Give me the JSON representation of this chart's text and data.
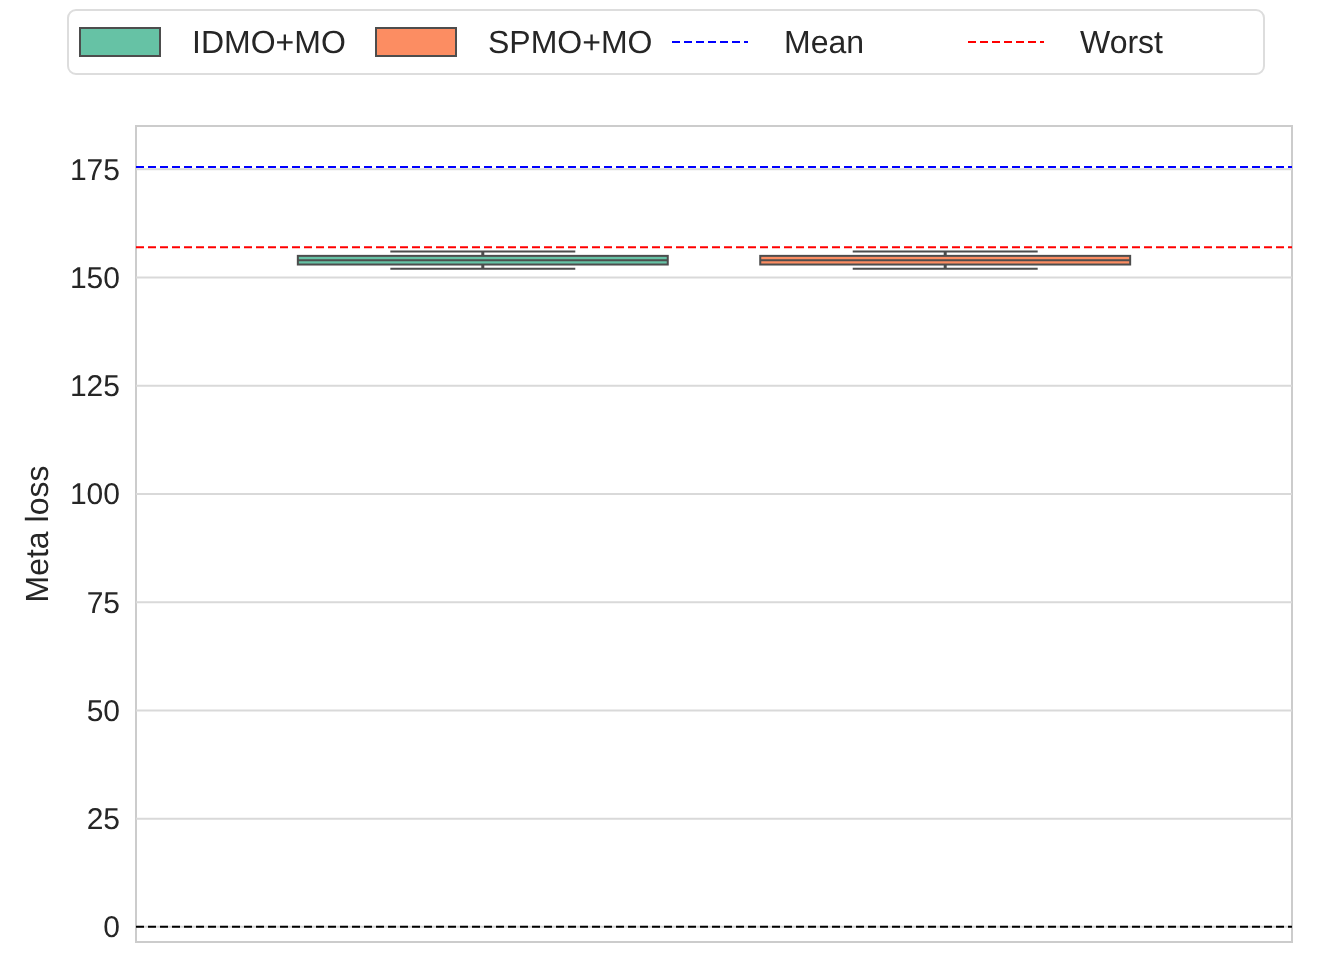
{
  "chart_data": {
    "type": "box",
    "ylabel": "Meta loss",
    "categories": [
      null
    ],
    "series": [
      {
        "name": "IDMO+MO",
        "color": "#66c2a5",
        "boxes": [
          {
            "low": 152,
            "q1": 153,
            "median": 154,
            "q3": 155,
            "high": 156
          }
        ]
      },
      {
        "name": "SPMO+MO",
        "color": "#fc8d62",
        "boxes": [
          {
            "low": 152,
            "q1": 153,
            "median": 154,
            "q3": 155,
            "high": 156
          }
        ]
      }
    ],
    "ylim": [
      -3.5,
      185
    ],
    "yticks": [
      0,
      25,
      50,
      75,
      100,
      125,
      150,
      175
    ],
    "grid": "y",
    "legend": "top",
    "ref_lines": [
      {
        "axis": "y",
        "value": 175.5,
        "label": "Mean",
        "color": "#0000ff",
        "line_style": "dashed"
      },
      {
        "axis": "y",
        "value": 157,
        "label": "Worst",
        "color": "#ff0000",
        "line_style": "dashed"
      },
      {
        "axis": "y",
        "value": 0,
        "color": "#000000",
        "line_style": "dashed"
      }
    ]
  }
}
